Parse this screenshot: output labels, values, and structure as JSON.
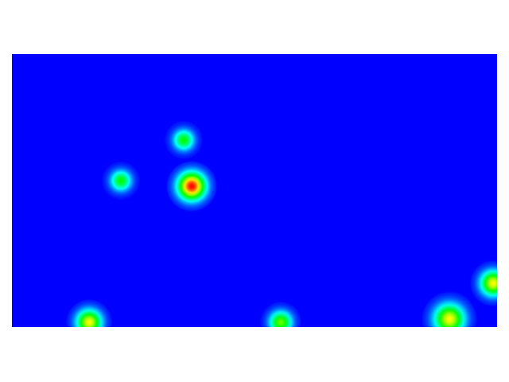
{
  "chart_data": {
    "type": "heatmap",
    "title": "",
    "xlabel": "",
    "ylabel": "",
    "axes_visible": false,
    "grid": false,
    "legend": "none",
    "colormap": [
      "#0000ff",
      "#00ffff",
      "#00ff00",
      "#ffff00",
      "#ff0000"
    ],
    "background_color": "#0000ff",
    "page_background": "#ffffff",
    "value_range": [
      0,
      1
    ],
    "xlim": [
      0,
      610
    ],
    "ylim": [
      0,
      343
    ],
    "hotspots": [
      {
        "x": 137,
        "y": 159,
        "radius": 25,
        "peak": 0.5
      },
      {
        "x": 216,
        "y": 108,
        "radius": 25,
        "peak": 0.5
      },
      {
        "x": 226,
        "y": 166,
        "radius": 33,
        "peak": 1.0
      },
      {
        "x": 97,
        "y": 337,
        "radius": 30,
        "peak": 0.75
      },
      {
        "x": 338,
        "y": 337,
        "radius": 27,
        "peak": 0.6
      },
      {
        "x": 550,
        "y": 333,
        "radius": 36,
        "peak": 0.75
      },
      {
        "x": 605,
        "y": 288,
        "radius": 30,
        "peak": 0.75
      }
    ]
  }
}
